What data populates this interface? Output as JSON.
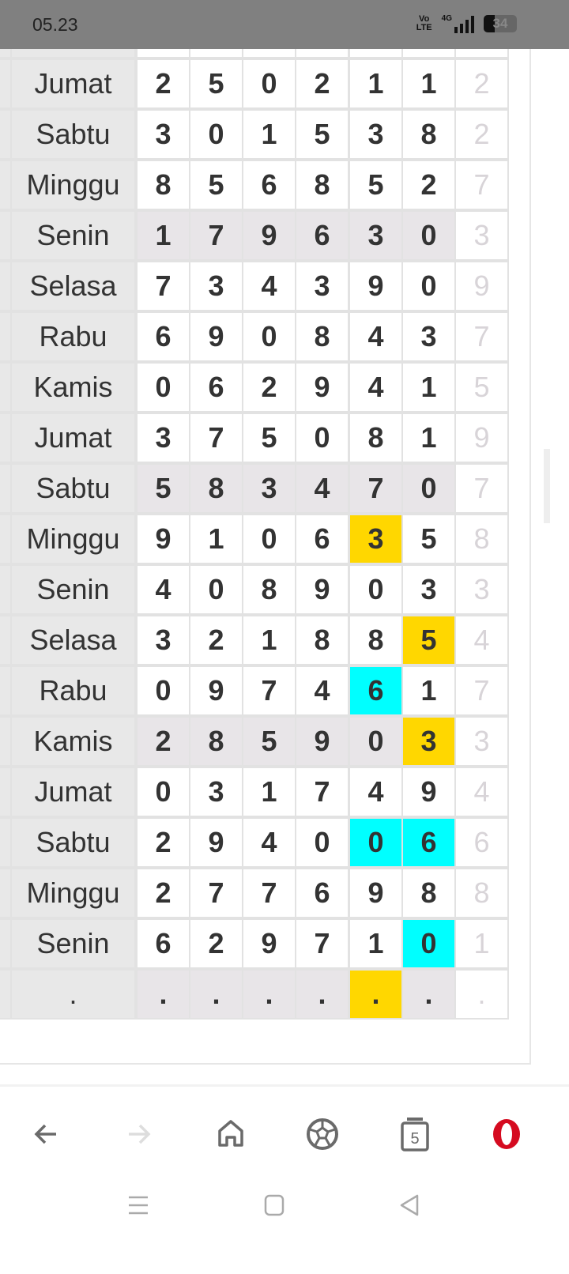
{
  "status_bar": {
    "time": "05.23",
    "network": "4G",
    "volte": "Vo LTE",
    "battery": "34"
  },
  "table": {
    "rows": [
      {
        "day": "Jumat",
        "digits": [
          "2",
          "5",
          "0",
          "2",
          "1",
          "1",
          "2"
        ],
        "shaded": false,
        "hl": {}
      },
      {
        "day": "Sabtu",
        "digits": [
          "3",
          "0",
          "1",
          "5",
          "3",
          "8",
          "2"
        ],
        "shaded": false,
        "hl": {}
      },
      {
        "day": "Minggu",
        "digits": [
          "8",
          "5",
          "6",
          "8",
          "5",
          "2",
          "7"
        ],
        "shaded": false,
        "hl": {}
      },
      {
        "day": "Senin",
        "digits": [
          "1",
          "7",
          "9",
          "6",
          "3",
          "0",
          "3"
        ],
        "shaded": true,
        "hl": {}
      },
      {
        "day": "Selasa",
        "digits": [
          "7",
          "3",
          "4",
          "3",
          "9",
          "0",
          "9"
        ],
        "shaded": false,
        "hl": {}
      },
      {
        "day": "Rabu",
        "digits": [
          "6",
          "9",
          "0",
          "8",
          "4",
          "3",
          "7"
        ],
        "shaded": false,
        "hl": {}
      },
      {
        "day": "Kamis",
        "digits": [
          "0",
          "6",
          "2",
          "9",
          "4",
          "1",
          "5"
        ],
        "shaded": false,
        "hl": {}
      },
      {
        "day": "Jumat",
        "digits": [
          "3",
          "7",
          "5",
          "0",
          "8",
          "1",
          "9"
        ],
        "shaded": false,
        "hl": {}
      },
      {
        "day": "Sabtu",
        "digits": [
          "5",
          "8",
          "3",
          "4",
          "7",
          "0",
          "7"
        ],
        "shaded": true,
        "hl": {}
      },
      {
        "day": "Minggu",
        "digits": [
          "9",
          "1",
          "0",
          "6",
          "3",
          "5",
          "8"
        ],
        "shaded": false,
        "hl": {
          "4": "yellow"
        }
      },
      {
        "day": "Senin",
        "digits": [
          "4",
          "0",
          "8",
          "9",
          "0",
          "3",
          "3"
        ],
        "shaded": false,
        "hl": {}
      },
      {
        "day": "Selasa",
        "digits": [
          "3",
          "2",
          "1",
          "8",
          "8",
          "5",
          "4"
        ],
        "shaded": false,
        "hl": {
          "5": "yellow"
        }
      },
      {
        "day": "Rabu",
        "digits": [
          "0",
          "9",
          "7",
          "4",
          "6",
          "1",
          "7"
        ],
        "shaded": false,
        "hl": {
          "4": "cyan"
        }
      },
      {
        "day": "Kamis",
        "digits": [
          "2",
          "8",
          "5",
          "9",
          "0",
          "3",
          "3"
        ],
        "shaded": true,
        "hl": {
          "5": "yellow"
        }
      },
      {
        "day": "Jumat",
        "digits": [
          "0",
          "3",
          "1",
          "7",
          "4",
          "9",
          "4"
        ],
        "shaded": false,
        "hl": {}
      },
      {
        "day": "Sabtu",
        "digits": [
          "2",
          "9",
          "4",
          "0",
          "0",
          "6",
          "6"
        ],
        "shaded": false,
        "hl": {
          "4": "cyan",
          "5": "cyan"
        }
      },
      {
        "day": "Minggu",
        "digits": [
          "2",
          "7",
          "7",
          "6",
          "9",
          "8",
          "8"
        ],
        "shaded": false,
        "hl": {}
      },
      {
        "day": "Senin",
        "digits": [
          "6",
          "2",
          "9",
          "7",
          "1",
          "0",
          "1"
        ],
        "shaded": false,
        "hl": {
          "5": "cyan"
        }
      },
      {
        "day": ".",
        "digits": [
          ".",
          ".",
          ".",
          ".",
          ".",
          ".",
          "."
        ],
        "shaded": true,
        "hl": {
          "4": "yellow"
        }
      }
    ]
  },
  "colors": {
    "yellow": "#ffd700",
    "cyan": "#00ffff",
    "shade": "#e8e5e8",
    "opera_red": "#d50b20"
  },
  "browser_nav": {
    "tabs_count": "5",
    "buttons": [
      "back-icon",
      "forward-icon",
      "home-icon",
      "soccer-ball-icon",
      "tabs-icon",
      "opera-menu-icon"
    ]
  },
  "system_nav": [
    "recents-icon",
    "home-icon",
    "back-icon"
  ]
}
